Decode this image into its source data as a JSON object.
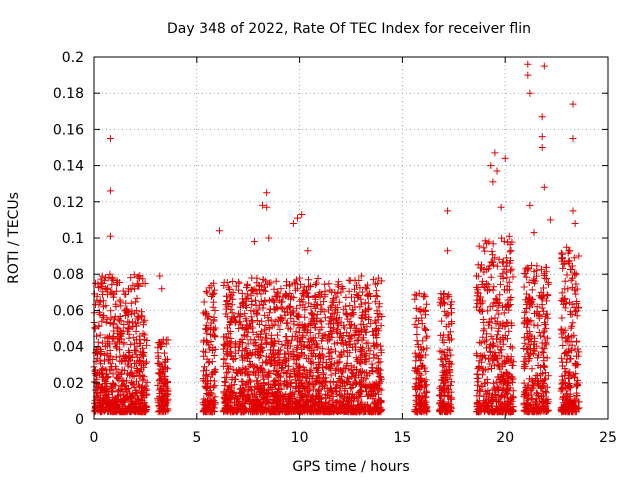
{
  "chart_data": {
    "type": "scatter",
    "title": "Day 348 of 2022, Rate Of TEC Index for receiver flin",
    "xlabel": "GPS time / hours",
    "ylabel": "ROTI / TECUs",
    "xlim": [
      0,
      25
    ],
    "ylim": [
      0,
      0.2
    ],
    "xticks": [
      "0",
      "5",
      "10",
      "15",
      "20",
      "25"
    ],
    "yticks": [
      "0",
      "0.02",
      "0.04",
      "0.06",
      "0.08",
      "0.1",
      "0.12",
      "0.14",
      "0.16",
      "0.18",
      "0.2"
    ],
    "grid": true,
    "marker": "+",
    "color": "#e00000",
    "notable_points": [
      [
        0.4,
        0.079
      ],
      [
        0.8,
        0.155
      ],
      [
        0.8,
        0.126
      ],
      [
        0.8,
        0.101
      ],
      [
        3.2,
        0.079
      ],
      [
        3.3,
        0.072
      ],
      [
        6.1,
        0.104
      ],
      [
        7.8,
        0.098
      ],
      [
        8.2,
        0.118
      ],
      [
        8.4,
        0.125
      ],
      [
        8.4,
        0.117
      ],
      [
        8.5,
        0.1
      ],
      [
        9.7,
        0.108
      ],
      [
        9.9,
        0.111
      ],
      [
        10.1,
        0.113
      ],
      [
        10.4,
        0.093
      ],
      [
        13.0,
        0.079
      ],
      [
        17.2,
        0.115
      ],
      [
        17.2,
        0.093
      ],
      [
        18.9,
        0.076
      ],
      [
        19.3,
        0.14
      ],
      [
        19.4,
        0.131
      ],
      [
        19.5,
        0.147
      ],
      [
        19.6,
        0.137
      ],
      [
        19.8,
        0.117
      ],
      [
        20.0,
        0.144
      ],
      [
        20.2,
        0.101
      ],
      [
        21.1,
        0.196
      ],
      [
        21.1,
        0.19
      ],
      [
        21.2,
        0.18
      ],
      [
        21.2,
        0.118
      ],
      [
        21.4,
        0.103
      ],
      [
        21.8,
        0.167
      ],
      [
        21.8,
        0.156
      ],
      [
        21.8,
        0.15
      ],
      [
        21.9,
        0.195
      ],
      [
        21.9,
        0.128
      ],
      [
        22.2,
        0.11
      ],
      [
        22.9,
        0.072
      ],
      [
        23.1,
        0.093
      ],
      [
        23.3,
        0.174
      ],
      [
        23.3,
        0.155
      ],
      [
        23.3,
        0.115
      ],
      [
        23.4,
        0.108
      ],
      [
        23.5,
        0.057
      ]
    ],
    "dense_intervals": [
      {
        "x": [
          0.0,
          2.6
        ],
        "ymax": 0.08
      },
      {
        "x": [
          3.1,
          3.6
        ],
        "ymax": 0.045
      },
      {
        "x": [
          5.3,
          5.9
        ],
        "ymax": 0.076
      },
      {
        "x": [
          6.3,
          14.0
        ],
        "ymax": 0.078
      },
      {
        "x": [
          15.6,
          16.2
        ],
        "ymax": 0.07
      },
      {
        "x": [
          16.8,
          17.4
        ],
        "ymax": 0.07
      },
      {
        "x": [
          18.6,
          20.4
        ],
        "ymax": 0.1
      },
      {
        "x": [
          20.9,
          22.1
        ],
        "ymax": 0.085
      },
      {
        "x": [
          22.7,
          23.6
        ],
        "ymax": 0.095
      }
    ]
  }
}
